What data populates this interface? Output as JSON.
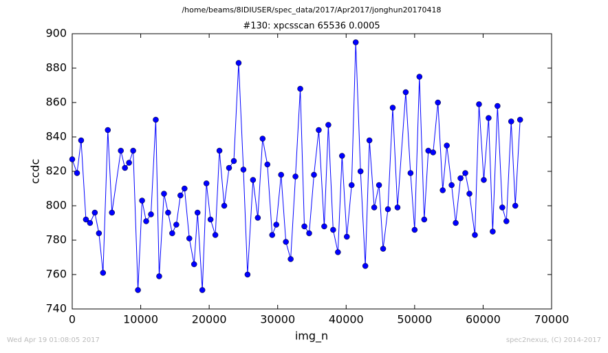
{
  "chart_data": {
    "type": "line",
    "suptitle": "/home/beams/8IDIUSER/spec_data/2017/Apr2017/jonghun20170418",
    "title": "#130: xpcsscan 65536 0.0005",
    "xlabel": "img_n",
    "ylabel": "ccdc",
    "footer_left": "Wed Apr 19 01:08:05 2017",
    "footer_right": "spec2nexus, (C) 2014-2017",
    "color": "#0000ff",
    "markers": true,
    "xlim": [
      0,
      70000
    ],
    "xticks": [
      0,
      10000,
      20000,
      30000,
      40000,
      50000,
      60000,
      70000
    ],
    "ylim": [
      740,
      900
    ],
    "yticks": [
      740,
      760,
      780,
      800,
      820,
      840,
      860,
      880,
      900
    ],
    "x": [
      0,
      700,
      1300,
      2000,
      2600,
      3300,
      3900,
      4500,
      5200,
      5800,
      7100,
      7700,
      8300,
      8900,
      9600,
      10200,
      10800,
      11500,
      12200,
      12700,
      13400,
      14000,
      14600,
      15200,
      15800,
      16400,
      17100,
      17800,
      18300,
      19000,
      19600,
      20200,
      20900,
      21500,
      22200,
      22900,
      23600,
      24300,
      25000,
      25600,
      26400,
      27100,
      27800,
      28500,
      29200,
      29800,
      30500,
      31200,
      31900,
      32600,
      33300,
      33900,
      34600,
      35300,
      36000,
      36800,
      37400,
      38100,
      38800,
      39400,
      40100,
      40800,
      41400,
      42100,
      42800,
      43400,
      44100,
      44800,
      45400,
      46100,
      46800,
      47500,
      48700,
      49400,
      50000,
      50700,
      51400,
      52000,
      52700,
      53400,
      54100,
      54700,
      55400,
      56000,
      56700,
      57400,
      58000,
      58800,
      59400,
      60100,
      60800,
      61400,
      62100,
      62800,
      63400,
      64100,
      64700,
      65400
    ],
    "values": [
      827,
      819,
      838,
      792,
      790,
      796,
      784,
      761,
      844,
      796,
      832,
      822,
      825,
      832,
      751,
      803,
      791,
      795,
      850,
      759,
      807,
      796,
      784,
      789,
      806,
      810,
      781,
      766,
      796,
      751,
      813,
      792,
      783,
      832,
      800,
      822,
      826,
      883,
      821,
      760,
      815,
      793,
      839,
      824,
      783,
      789,
      818,
      779,
      769,
      817,
      868,
      788,
      784,
      818,
      844,
      788,
      847,
      786,
      773,
      829,
      782,
      812,
      895,
      820,
      765,
      838,
      799,
      812,
      775,
      798,
      857,
      799,
      866,
      819,
      786,
      875,
      792,
      832,
      831,
      860,
      809,
      835,
      812,
      790,
      816,
      819,
      807,
      783,
      859,
      815,
      851,
      785,
      858,
      799,
      791,
      849,
      800,
      850
    ]
  }
}
